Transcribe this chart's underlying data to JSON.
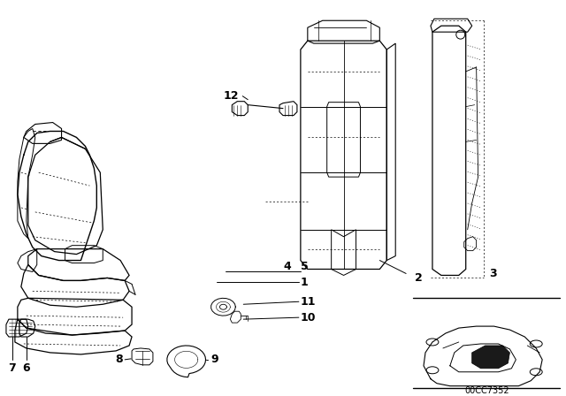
{
  "bg_color": "#ffffff",
  "line_color": "#000000",
  "fig_width": 6.4,
  "fig_height": 4.48,
  "dpi": 100,
  "watermark": "00CC7352",
  "label_fontsize": 8.5,
  "label_bold": true
}
